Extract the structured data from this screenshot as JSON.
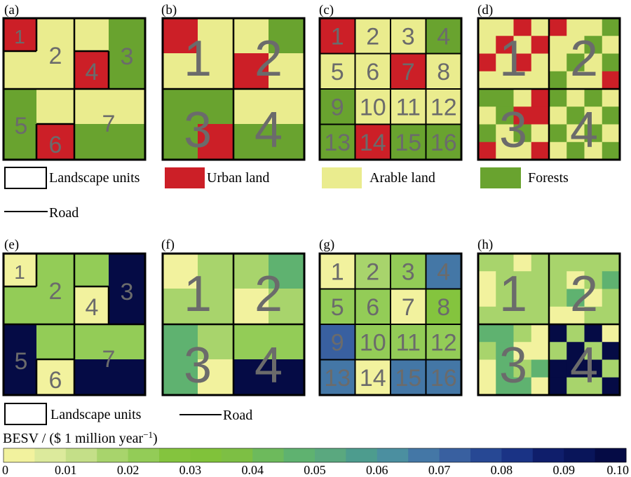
{
  "colors": {
    "urban": "#cc1f27",
    "arable": "#eaec8e",
    "forest": "#69a32f",
    "unit_number": "#6b6b6b",
    "legend_scale": [
      "#f2f29e",
      "#dcea9c",
      "#c4df88",
      "#a8d46c",
      "#93cc57",
      "#84c43e",
      "#80c23a",
      "#7dbf44",
      "#6dba5c",
      "#5fb270",
      "#5aa87f",
      "#4d9c8e",
      "#4b8fa0",
      "#4477a6",
      "#3960a0",
      "#274894",
      "#1a3385",
      "#0f1e6b",
      "#09155a",
      "#050b45"
    ]
  },
  "panels_top": [
    {
      "id": "a",
      "label": "(a)",
      "units": [
        {
          "n": "1",
          "size": 28
        },
        {
          "n": "2",
          "size": 34
        },
        {
          "n": "3",
          "size": 34
        },
        {
          "n": "4",
          "size": 34
        },
        {
          "n": "5",
          "size": 34
        },
        {
          "n": "6",
          "size": 34
        },
        {
          "n": "7",
          "size": 34
        }
      ]
    },
    {
      "id": "b",
      "label": "(b)",
      "units": [
        {
          "n": "1",
          "size": 72
        },
        {
          "n": "2",
          "size": 72
        },
        {
          "n": "3",
          "size": 72
        },
        {
          "n": "4",
          "size": 72
        }
      ]
    },
    {
      "id": "c",
      "label": "(c)",
      "units": [
        {
          "n": "1",
          "size": 34
        },
        {
          "n": "2",
          "size": 34
        },
        {
          "n": "3",
          "size": 34
        },
        {
          "n": "4",
          "size": 34
        },
        {
          "n": "5",
          "size": 34
        },
        {
          "n": "6",
          "size": 34
        },
        {
          "n": "7",
          "size": 34
        },
        {
          "n": "8",
          "size": 34
        },
        {
          "n": "9",
          "size": 34
        },
        {
          "n": "10",
          "size": 34
        },
        {
          "n": "11",
          "size": 34
        },
        {
          "n": "12",
          "size": 34
        },
        {
          "n": "13",
          "size": 34
        },
        {
          "n": "14",
          "size": 34
        },
        {
          "n": "15",
          "size": 34
        },
        {
          "n": "16",
          "size": 34
        }
      ]
    },
    {
      "id": "d",
      "label": "(d)",
      "units": [
        {
          "n": "1",
          "size": 72
        },
        {
          "n": "2",
          "size": 72
        },
        {
          "n": "3",
          "size": 72
        },
        {
          "n": "4",
          "size": 72
        }
      ]
    }
  ],
  "panels_bottom": [
    {
      "id": "e",
      "label": "(e)",
      "units": [
        {
          "n": "1",
          "size": 28
        },
        {
          "n": "2",
          "size": 34
        },
        {
          "n": "3",
          "size": 34
        },
        {
          "n": "4",
          "size": 34
        },
        {
          "n": "5",
          "size": 34
        },
        {
          "n": "6",
          "size": 34
        },
        {
          "n": "7",
          "size": 34
        }
      ]
    },
    {
      "id": "f",
      "label": "(f)",
      "units": [
        {
          "n": "1",
          "size": 72
        },
        {
          "n": "2",
          "size": 72
        },
        {
          "n": "3",
          "size": 72
        },
        {
          "n": "4",
          "size": 72
        }
      ]
    },
    {
      "id": "g",
      "label": "(g)",
      "units": [
        {
          "n": "1",
          "size": 34
        },
        {
          "n": "2",
          "size": 34
        },
        {
          "n": "3",
          "size": 34
        },
        {
          "n": "4",
          "size": 34
        },
        {
          "n": "5",
          "size": 34
        },
        {
          "n": "6",
          "size": 34
        },
        {
          "n": "7",
          "size": 34
        },
        {
          "n": "8",
          "size": 34
        },
        {
          "n": "9",
          "size": 34
        },
        {
          "n": "10",
          "size": 34
        },
        {
          "n": "11",
          "size": 34
        },
        {
          "n": "12",
          "size": 34
        },
        {
          "n": "13",
          "size": 34
        },
        {
          "n": "14",
          "size": 34
        },
        {
          "n": "15",
          "size": 34
        },
        {
          "n": "16",
          "size": 34
        }
      ]
    },
    {
      "id": "h",
      "label": "(h)",
      "units": [
        {
          "n": "1",
          "size": 72
        },
        {
          "n": "2",
          "size": 72
        },
        {
          "n": "3",
          "size": 72
        },
        {
          "n": "4",
          "size": 72
        }
      ]
    }
  ],
  "legend_top": {
    "landscape_units": "Landscape units",
    "urban_land": "Urban land",
    "arable_land": "Arable land",
    "forests": "Forests",
    "road": "Road"
  },
  "legend_bottom": {
    "landscape_units": "Landscape units",
    "road": "Road"
  },
  "colorbar": {
    "title_prefix": "BESV / ($ 1 million year",
    "title_sup": "−1",
    "title_suffix": ")",
    "ticks": [
      "0",
      "0.01",
      "0.02",
      "0.03",
      "0.04",
      "0.05",
      "0.06",
      "0.07",
      "0.08",
      "0.09",
      "0.10"
    ]
  }
}
